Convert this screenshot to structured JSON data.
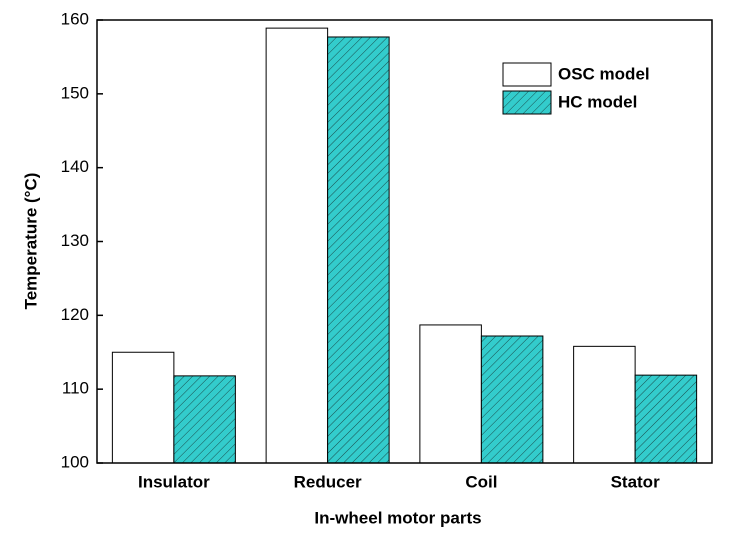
{
  "chart_data": {
    "type": "bar",
    "x_label": "In-wheel motor parts",
    "y_label": "Temperature (°C)",
    "categories": [
      "Insulator",
      "Reducer",
      "Coil",
      "Stator"
    ],
    "series": [
      {
        "name": "OSC model",
        "color": "#ffffff",
        "hatch": false,
        "values": [
          115.0,
          158.9,
          118.7,
          115.8
        ]
      },
      {
        "name": "HC model",
        "color": "#33cccc",
        "hatch": true,
        "values": [
          111.8,
          157.7,
          117.2,
          111.9
        ]
      }
    ],
    "ylim": [
      100,
      160
    ],
    "yticks": [
      100,
      110,
      120,
      130,
      140,
      150,
      160
    ],
    "legend": "upper-right",
    "grid": false
  }
}
